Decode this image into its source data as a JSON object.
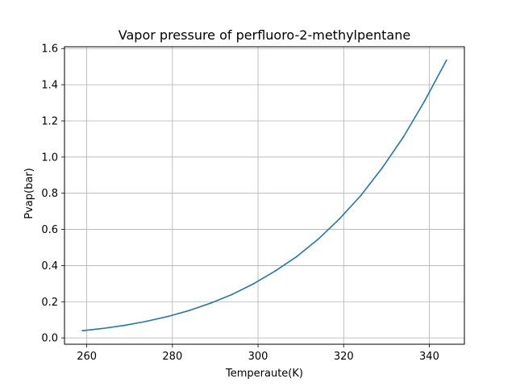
{
  "chart_data": {
    "type": "line",
    "title": "Vapor pressure of perfluoro-2-methylpentane",
    "xlabel": "Temperaute(K)",
    "ylabel": "Pvap(bar)",
    "xlim": [
      254.8,
      348.2
    ],
    "ylim": [
      -0.035,
      1.61
    ],
    "xticks": [
      260,
      280,
      300,
      320,
      340
    ],
    "yticks": [
      0.0,
      0.2,
      0.4,
      0.6,
      0.8,
      1.0,
      1.2,
      1.4,
      1.6
    ],
    "xtick_labels": [
      "260",
      "280",
      "300",
      "320",
      "340"
    ],
    "ytick_labels": [
      "0.0",
      "0.2",
      "0.4",
      "0.6",
      "0.8",
      "1.0",
      "1.2",
      "1.4",
      "1.6"
    ],
    "grid": true,
    "series": [
      {
        "color": "#1f77b4",
        "x": [
          259,
          264,
          269,
          274,
          279,
          284,
          289,
          294,
          299,
          304,
          309,
          314,
          319,
          324,
          329,
          334,
          339,
          344
        ],
        "y": [
          0.04,
          0.053,
          0.07,
          0.092,
          0.119,
          0.152,
          0.193,
          0.241,
          0.3,
          0.37,
          0.449,
          0.545,
          0.658,
          0.787,
          0.94,
          1.113,
          1.314,
          1.535
        ]
      }
    ]
  }
}
